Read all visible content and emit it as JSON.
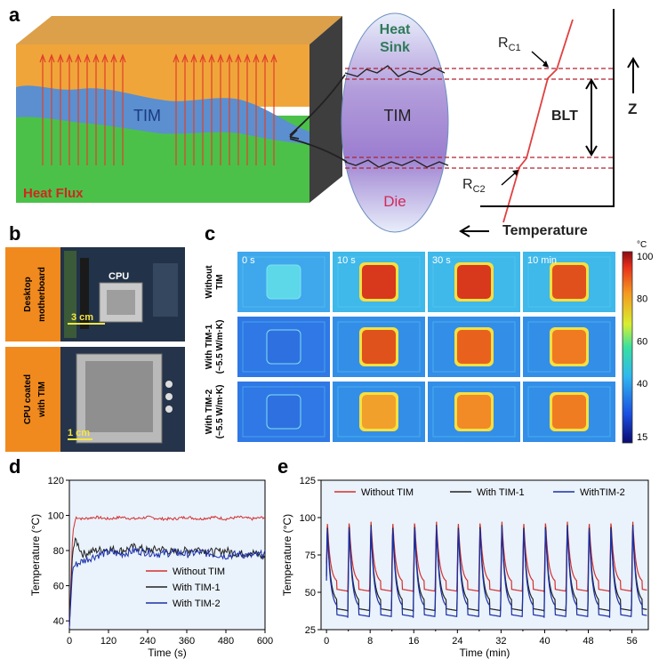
{
  "panels": {
    "a": "a",
    "b": "b",
    "c": "c",
    "d": "d",
    "e": "e"
  },
  "panel_a": {
    "tim_label": "TIM",
    "heat_flux": "Heat Flux",
    "heat_sink": "Heat",
    "heat_sink_2": "Sink",
    "tim_center": "TIM",
    "die": "Die",
    "rc1": "R",
    "rc1_sub": "C1",
    "rc2": "R",
    "rc2_sub": "C2",
    "blt": "BLT",
    "z": "Z",
    "temperature": "Temperature"
  },
  "panel_b": {
    "top_label_1": "Desktop",
    "top_label_2": "motherboard",
    "cpu": "CPU",
    "scale_top": "3 cm",
    "bottom_label_1": "CPU coated",
    "bottom_label_2": "with TIM",
    "scale_bottom": "1 cm"
  },
  "panel_c": {
    "times": [
      "0 s",
      "10 s",
      "30 s",
      "10 min"
    ],
    "rows": [
      {
        "line1": "Without",
        "line2": "TIM",
        "line3": ""
      },
      {
        "line1": "With TIM-1",
        "line2": "(~5.5 W/m·K)",
        "line3": ""
      },
      {
        "line1": "With TIM-2",
        "line2": "(~5.5 W/m·K)",
        "line3": ""
      }
    ],
    "colorbar_unit": "°C",
    "colorbar_ticks": [
      "100",
      "80",
      "60",
      "40",
      "15"
    ],
    "colors": {
      "cold": "#1f5fe0",
      "warm": "#3fbfe8",
      "hot": "#e8401a"
    }
  },
  "chart_data": [
    {
      "type": "line",
      "xlabel": "Time (s)",
      "ylabel": "Temperature (°C)",
      "xlim": [
        0,
        600
      ],
      "ylim": [
        35,
        120
      ],
      "xticks": [
        "0",
        "120",
        "240",
        "360",
        "480",
        "600"
      ],
      "yticks": [
        "40",
        "60",
        "80",
        "100",
        "120"
      ],
      "legend_position": "bottom-right",
      "series": [
        {
          "name": "Without TIM",
          "color": "#d32f2f",
          "x": [
            0,
            10,
            20,
            40,
            80,
            120,
            160,
            200,
            240,
            280,
            320,
            360,
            400,
            440,
            480,
            520,
            560,
            600
          ],
          "y": [
            36,
            90,
            99,
            98,
            99,
            98,
            99,
            98,
            99,
            98,
            98,
            99,
            98,
            99,
            98,
            99,
            98,
            99
          ]
        },
        {
          "name": "With TIM-1",
          "color": "#222222",
          "x": [
            0,
            10,
            20,
            40,
            80,
            120,
            160,
            200,
            240,
            280,
            320,
            360,
            400,
            440,
            480,
            520,
            560,
            600
          ],
          "y": [
            36,
            80,
            86,
            78,
            80,
            81,
            80,
            82,
            80,
            81,
            79,
            80,
            81,
            79,
            80,
            78,
            79,
            76
          ]
        },
        {
          "name": "With TIM-2",
          "color": "#1a2fa8",
          "x": [
            0,
            10,
            20,
            40,
            80,
            120,
            160,
            200,
            240,
            280,
            320,
            360,
            400,
            440,
            480,
            520,
            560,
            600
          ],
          "y": [
            36,
            70,
            72,
            74,
            77,
            79,
            78,
            80,
            79,
            78,
            79,
            78,
            79,
            78,
            77,
            78,
            77,
            78
          ]
        }
      ]
    },
    {
      "type": "line",
      "xlabel": "Time (min)",
      "ylabel": "Temperature (°C)",
      "xlim": [
        -1,
        59
      ],
      "ylim": [
        25,
        125
      ],
      "xticks": [
        "0",
        "8",
        "16",
        "24",
        "32",
        "40",
        "48",
        "56"
      ],
      "xtick_values": [
        0,
        8,
        16,
        24,
        32,
        40,
        48,
        56
      ],
      "minor_xticks": [
        4,
        12,
        20,
        28,
        36,
        44,
        52
      ],
      "yticks": [
        "25",
        "50",
        "75",
        "100",
        "125"
      ],
      "legend_position": "top",
      "cycle_period_min": 4,
      "series": [
        {
          "name": "Without TIM",
          "color": "#d32f2f",
          "peak": 98,
          "floor": 50
        },
        {
          "name": "With TIM-1",
          "color": "#222222",
          "peak": 96,
          "floor": 37
        },
        {
          "name": "WithTIM-2",
          "color": "#1a2fa8",
          "peak": 95,
          "floor": 33
        }
      ]
    }
  ]
}
